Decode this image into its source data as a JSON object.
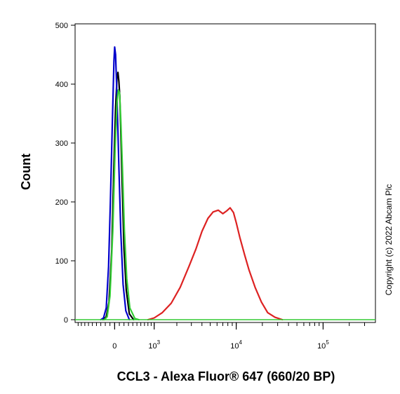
{
  "chart_data": {
    "type": "line",
    "xlabel": "CCL3 - Alexa Fluor® 647 (660/20 BP)",
    "ylabel": "Count",
    "ylim": [
      0,
      500
    ],
    "y_ticks": [
      0,
      100,
      200,
      300,
      400,
      500
    ],
    "x_scale": "biexponential",
    "x_ticks": [
      {
        "base": "0",
        "exp": ""
      },
      {
        "base": "10",
        "exp": "3"
      },
      {
        "base": "10",
        "exp": "4"
      },
      {
        "base": "10",
        "exp": "5"
      }
    ],
    "grid": false,
    "legend": "none",
    "copyright": "Copyright (c) 2022 Abcam Plc",
    "series": [
      {
        "color": "#000000",
        "points": [
          [
            -250,
            0
          ],
          [
            -180,
            5
          ],
          [
            -120,
            30
          ],
          [
            -60,
            120
          ],
          [
            -20,
            250
          ],
          [
            20,
            360
          ],
          [
            50,
            410
          ],
          [
            70,
            420
          ],
          [
            90,
            405
          ],
          [
            110,
            380
          ],
          [
            130,
            320
          ],
          [
            160,
            230
          ],
          [
            200,
            120
          ],
          [
            250,
            50
          ],
          [
            320,
            10
          ],
          [
            420,
            0
          ]
        ]
      },
      {
        "color": "#0000cc",
        "points": [
          [
            -300,
            0
          ],
          [
            -240,
            3
          ],
          [
            -180,
            20
          ],
          [
            -130,
            90
          ],
          [
            -90,
            200
          ],
          [
            -50,
            330
          ],
          [
            -15,
            440
          ],
          [
            0,
            463
          ],
          [
            20,
            450
          ],
          [
            50,
            380
          ],
          [
            90,
            260
          ],
          [
            130,
            150
          ],
          [
            180,
            60
          ],
          [
            240,
            15
          ],
          [
            320,
            0
          ]
        ]
      },
      {
        "color": "#33cc33",
        "points": [
          [
            -220,
            0
          ],
          [
            -160,
            5
          ],
          [
            -100,
            40
          ],
          [
            -40,
            150
          ],
          [
            10,
            290
          ],
          [
            50,
            370
          ],
          [
            80,
            390
          ],
          [
            105,
            385
          ],
          [
            130,
            340
          ],
          [
            165,
            260
          ],
          [
            210,
            150
          ],
          [
            260,
            70
          ],
          [
            330,
            20
          ],
          [
            450,
            2
          ],
          [
            550,
            0
          ]
        ]
      },
      {
        "color": "#dd2222",
        "points": [
          [
            800,
            0
          ],
          [
            1000,
            3
          ],
          [
            1300,
            12
          ],
          [
            1700,
            28
          ],
          [
            2200,
            55
          ],
          [
            2800,
            90
          ],
          [
            3400,
            120
          ],
          [
            4000,
            150
          ],
          [
            4700,
            172
          ],
          [
            5400,
            183
          ],
          [
            6200,
            186
          ],
          [
            7000,
            180
          ],
          [
            7800,
            185
          ],
          [
            8500,
            190
          ],
          [
            9300,
            182
          ],
          [
            10000,
            165
          ],
          [
            11000,
            140
          ],
          [
            12500,
            110
          ],
          [
            14000,
            85
          ],
          [
            16500,
            55
          ],
          [
            19500,
            30
          ],
          [
            23000,
            12
          ],
          [
            28000,
            4
          ],
          [
            34000,
            0
          ]
        ]
      }
    ]
  }
}
